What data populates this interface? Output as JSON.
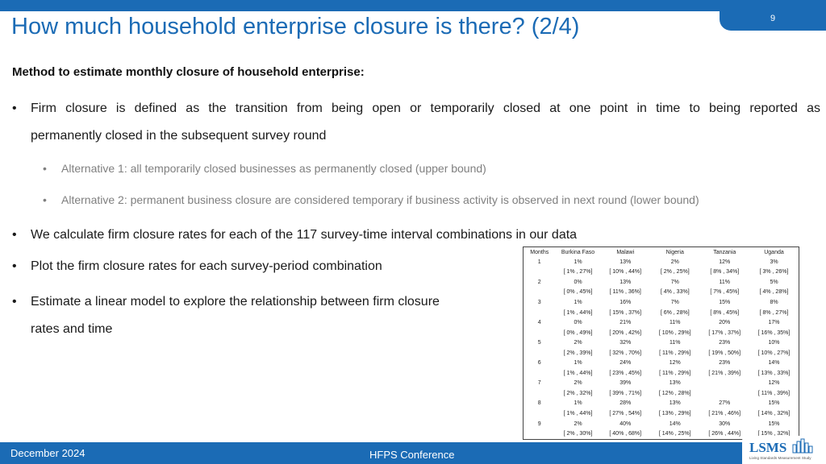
{
  "slide": {
    "page_number": "9",
    "title": "How much household enterprise closure is there? (2/4)",
    "method_heading": "Method to estimate monthly closure of household enterprise:",
    "bullet_1_line_1": "Firm closure is defined as the transition from being open or temporarily closed at one point in time to being reported as",
    "bullet_1_line_2": "permanently closed in the subsequent survey round",
    "sub_bullet_1": "Alternative 1: all temporarily closed businesses as permanently closed (upper bound)",
    "sub_bullet_2": "Alternative 2: permanent business closure are considered temporary if business activity is observed in next round (lower bound)",
    "bullet_2": "We calculate firm closure rates for each of the 117 survey-time interval combinations in our data",
    "bullet_3": "Plot the firm closure rates for each survey-period combination",
    "bullet_4_line_1": "Estimate a linear model to explore the relationship between firm closure",
    "bullet_4_line_2": "rates and time",
    "bullet_symbol": "•"
  },
  "table": {
    "headers": [
      "Months",
      "Burkina Faso",
      "Malawi",
      "Nigeria",
      "Tanzania",
      "Uganda"
    ],
    "rows": [
      [
        "1",
        "1%",
        "13%",
        "2%",
        "12%",
        "3%"
      ],
      [
        "",
        "[ 1% , 27%]",
        "[ 10% , 44%]",
        "[ 2% , 25%]",
        "[ 8% , 34%]",
        "[ 3% , 26%]"
      ],
      [
        "2",
        "0%",
        "13%",
        "7%",
        "11%",
        "5%"
      ],
      [
        "",
        "[ 0% , 45%]",
        "[ 11% , 36%]",
        "[ 4% , 33%]",
        "[ 7% , 45%]",
        "[ 4% , 28%]"
      ],
      [
        "3",
        "1%",
        "16%",
        "7%",
        "15%",
        "8%"
      ],
      [
        "",
        "[ 1% , 44%]",
        "[ 15% , 37%]",
        "[ 6% , 28%]",
        "[ 8% , 45%]",
        "[ 8% , 27%]"
      ],
      [
        "4",
        "0%",
        "21%",
        "11%",
        "20%",
        "17%"
      ],
      [
        "",
        "[ 0% , 49%]",
        "[ 20% , 42%]",
        "[ 10% , 29%]",
        "[ 17% , 37%]",
        "[ 16% , 35%]"
      ],
      [
        "5",
        "2%",
        "32%",
        "11%",
        "23%",
        "10%"
      ],
      [
        "",
        "[ 2% , 39%]",
        "[ 32% , 70%]",
        "[ 11% , 29%]",
        "[ 19% , 50%]",
        "[ 10% , 27%]"
      ],
      [
        "6",
        "1%",
        "24%",
        "12%",
        "23%",
        "14%"
      ],
      [
        "",
        "[ 1% , 44%]",
        "[ 23% , 45%]",
        "[ 11% , 29%]",
        "[ 21% , 39%]",
        "[ 13% , 33%]"
      ],
      [
        "7",
        "2%",
        "39%",
        "13%",
        "",
        "12%"
      ],
      [
        "",
        "[ 2% , 32%]",
        "[ 39% , 71%]",
        "[ 12% , 28%]",
        "",
        "[ 11% , 39%]"
      ],
      [
        "8",
        "1%",
        "28%",
        "13%",
        "27%",
        "15%"
      ],
      [
        "",
        "[ 1% , 44%]",
        "[ 27% , 54%]",
        "[ 13% , 29%]",
        "[ 21% , 46%]",
        "[ 14% , 32%]"
      ],
      [
        "9",
        "2%",
        "40%",
        "14%",
        "30%",
        "15%"
      ],
      [
        "",
        "[ 2% , 30%]",
        "[ 40% , 68%]",
        "[ 14% , 25%]",
        "[ 26% , 44%]",
        "[ 15% , 32%]"
      ]
    ]
  },
  "footer": {
    "date": "December 2024",
    "conference": "HFPS Conference"
  },
  "logo": {
    "text": "LSMS",
    "tagline": "Living Standards Measurement Study",
    "icon": "lsms-logo-icon"
  },
  "colors": {
    "accent": "#1b6bb5",
    "sub_text": "#7f7f7f"
  }
}
